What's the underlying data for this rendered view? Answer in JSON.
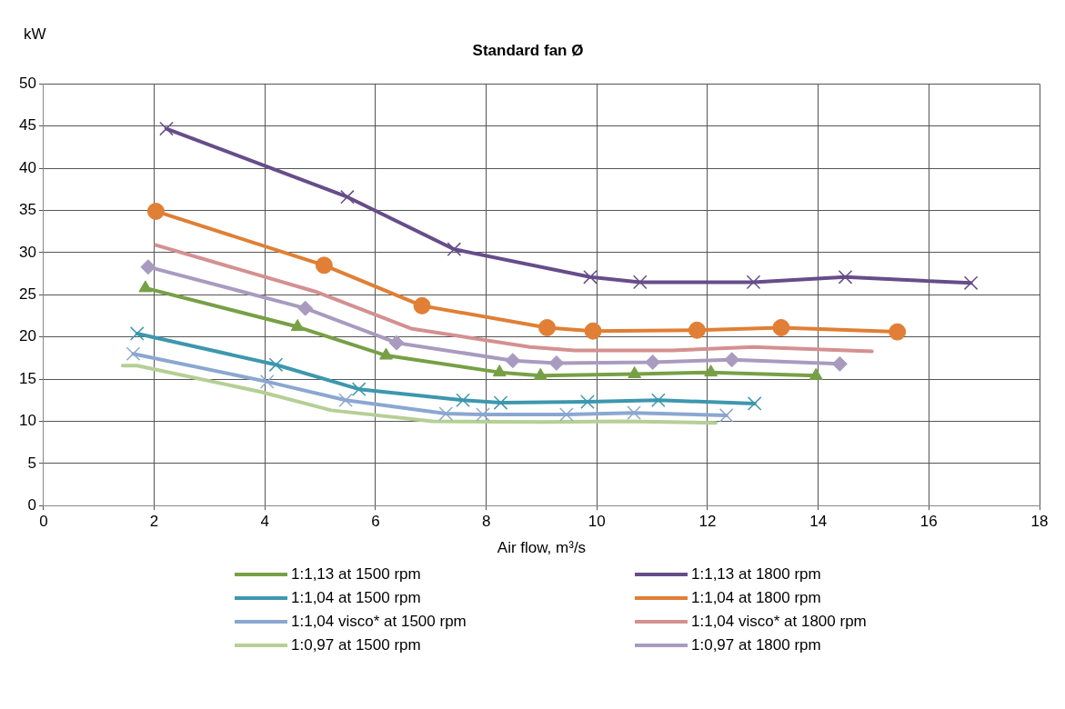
{
  "chart_data": {
    "type": "line",
    "title": "Standard fan Ø",
    "xlabel": "Air flow, m³/s",
    "ylabel": "kW",
    "xlim": [
      0,
      18
    ],
    "xticks": [
      0,
      2,
      4,
      6,
      8,
      10,
      12,
      14,
      16,
      18
    ],
    "ylim": [
      0,
      50
    ],
    "yticks": [
      0,
      5,
      10,
      15,
      20,
      25,
      30,
      35,
      40,
      45,
      50
    ],
    "grid": true,
    "legend": "bottom",
    "line_style": "solid",
    "series": [
      {
        "name": "1:1,13 at 1500 rpm",
        "color": "#77a046",
        "marker": "triangle",
        "x": [
          1.84,
          4.59,
          6.19,
          8.24,
          8.98,
          10.68,
          12.06,
          13.96
        ],
        "values": [
          25.8,
          21.2,
          17.8,
          15.8,
          15.4,
          15.6,
          15.8,
          15.4
        ]
      },
      {
        "name": "1:1,13 at 1800 rpm",
        "color": "#664d8a",
        "marker": "cross",
        "x": [
          2.22,
          5.49,
          7.42,
          9.88,
          10.78,
          12.83,
          14.49,
          16.76
        ],
        "values": [
          44.7,
          36.6,
          30.4,
          27.1,
          26.5,
          26.5,
          27.1,
          26.4
        ]
      },
      {
        "name": "1:1,04 at 1500 rpm",
        "color": "#3d97ae",
        "marker": "cross",
        "x": [
          1.69,
          4.2,
          5.7,
          7.58,
          8.26,
          9.83,
          11.11,
          12.85
        ],
        "values": [
          20.4,
          16.7,
          13.8,
          12.5,
          12.2,
          12.3,
          12.5,
          12.1
        ]
      },
      {
        "name": "1:1,04 at 1800 rpm",
        "color": "#e07f35",
        "marker": "circle",
        "x": [
          2.03,
          5.07,
          6.84,
          9.1,
          9.93,
          11.81,
          13.33,
          15.43
        ],
        "values": [
          34.9,
          28.5,
          23.7,
          21.1,
          20.7,
          20.8,
          21.1,
          20.6
        ]
      },
      {
        "name": "1:1,04 visco* at 1500 rpm",
        "color": "#8ba7d1",
        "marker": "cross",
        "x": [
          1.62,
          4.04,
          5.46,
          7.27,
          7.94,
          9.45,
          10.67,
          12.34
        ],
        "values": [
          18.0,
          14.7,
          12.5,
          10.9,
          10.8,
          10.8,
          11.0,
          10.7
        ]
      },
      {
        "name": "1:1,04 visco* at 1800 rpm",
        "color": "#d49090",
        "marker": "none",
        "x": [
          2.03,
          4.95,
          6.64,
          8.79,
          9.59,
          11.35,
          12.83,
          14.97
        ],
        "values": [
          30.9,
          25.3,
          21.0,
          18.8,
          18.4,
          18.4,
          18.8,
          18.3
        ]
      },
      {
        "name": "1:0,97 at 1500 rpm",
        "color": "#b5cf95",
        "marker": "none",
        "x": [
          1.43,
          1.69,
          3.92,
          5.2,
          7.03,
          9.03,
          10.5,
          12.15
        ],
        "values": [
          16.6,
          16.6,
          13.5,
          11.3,
          10.0,
          9.9,
          10.0,
          9.8
        ]
      },
      {
        "name": "1:0,97 at 1800 rpm",
        "color": "#a99bbf",
        "marker": "diamond",
        "x": [
          1.89,
          4.73,
          6.38,
          8.48,
          9.27,
          11.01,
          12.44,
          14.39
        ],
        "values": [
          28.3,
          23.4,
          19.3,
          17.2,
          16.9,
          17.0,
          17.3,
          16.8
        ]
      }
    ]
  }
}
